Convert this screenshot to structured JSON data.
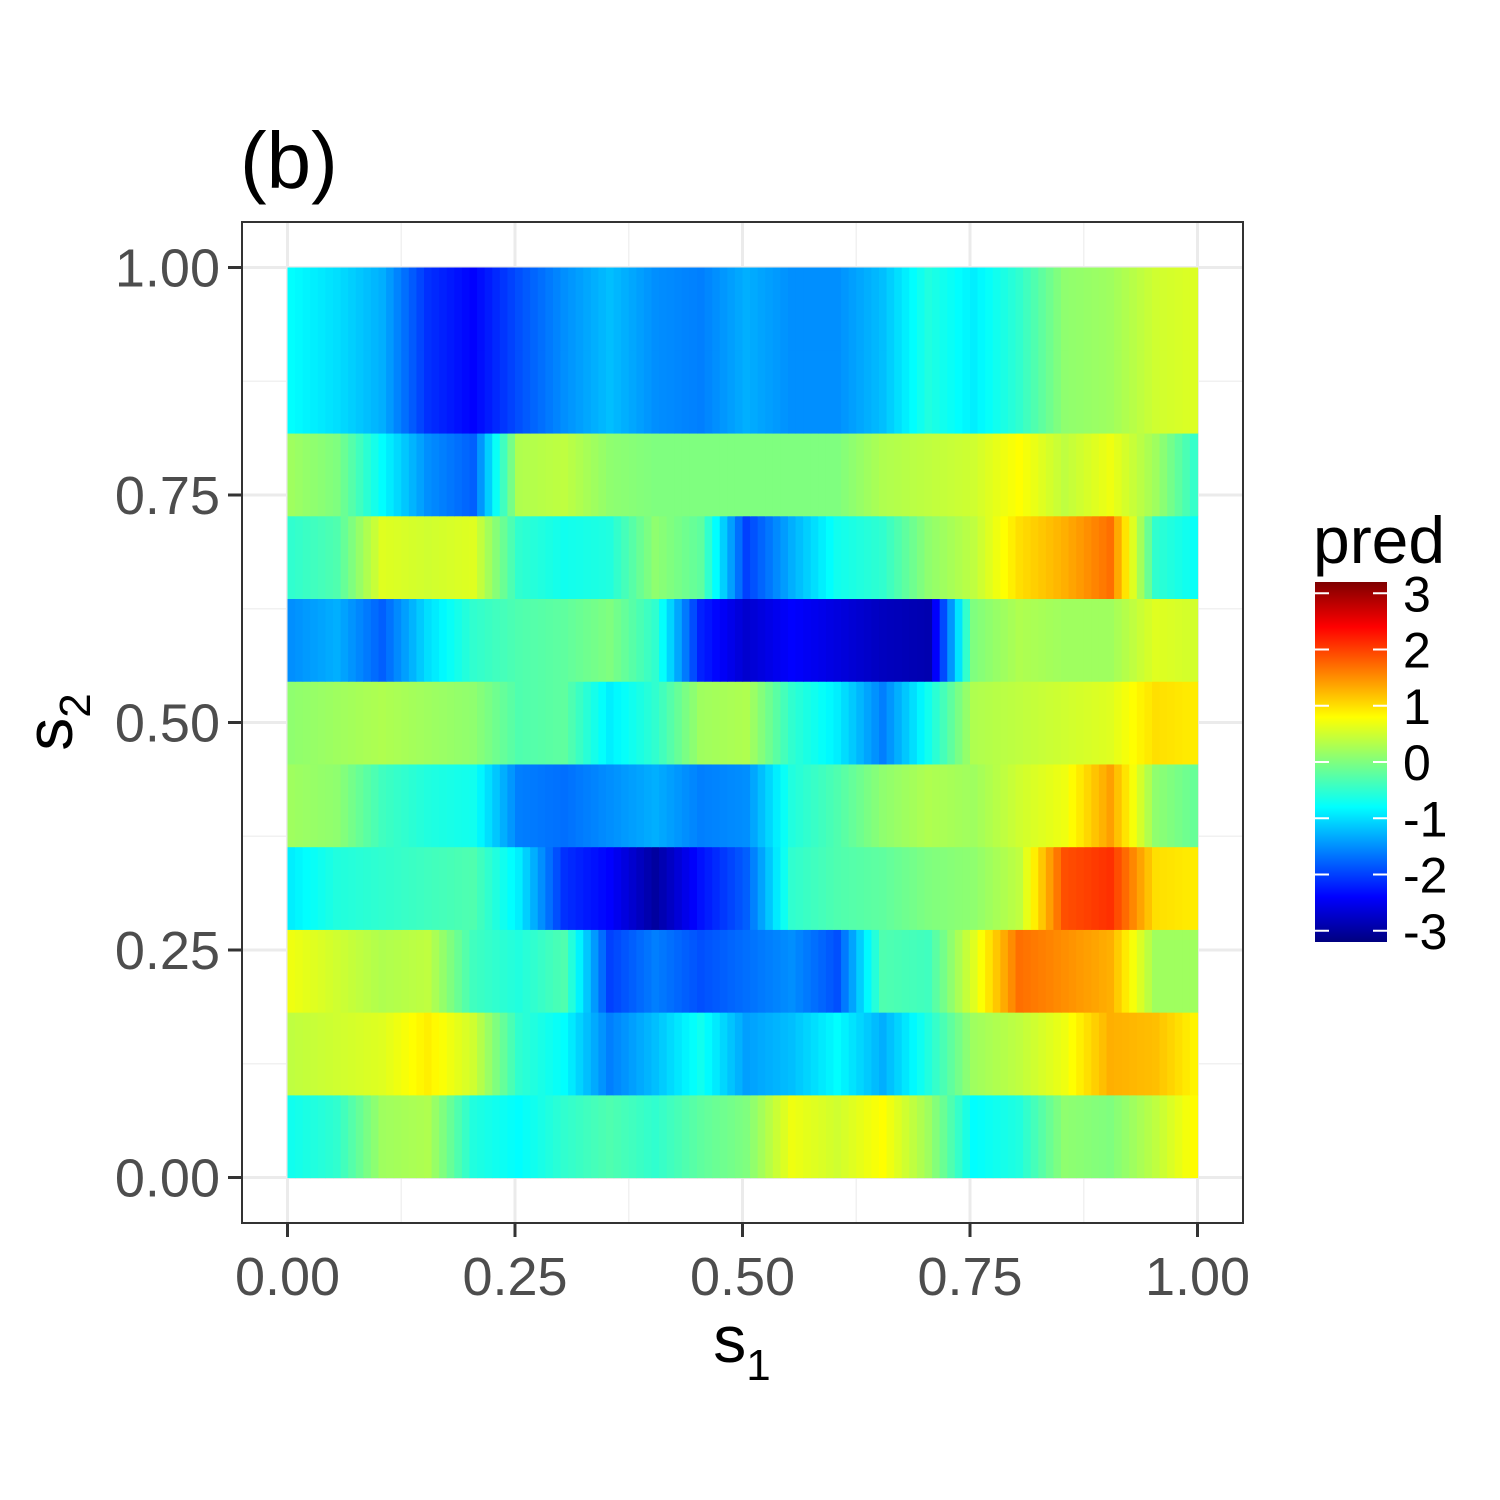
{
  "chart_data": {
    "type": "heatmap",
    "title": "(b)",
    "xlabel": "s",
    "xlabel_sub": "1",
    "ylabel": "s",
    "ylabel_sub": "2",
    "xlim": [
      -0.05,
      1.05
    ],
    "ylim": [
      -0.05,
      1.05
    ],
    "x_ticks": [
      0,
      0.25,
      0.5,
      0.75,
      1
    ],
    "x_tick_labels": [
      "0.00",
      "0.25",
      "0.50",
      "0.75",
      "1.00"
    ],
    "y_ticks": [
      0,
      0.25,
      0.5,
      0.75,
      1
    ],
    "y_tick_labels": [
      "0.00",
      "0.25",
      "0.50",
      "0.75",
      "1.00"
    ],
    "grid": true,
    "legend": {
      "title": "pred",
      "position": "right",
      "min": -3.2,
      "max": 3.2,
      "breaks": [
        3,
        2,
        1,
        0,
        -1,
        -2,
        -3
      ],
      "labels": [
        "3",
        "2",
        "1",
        "0",
        "-1",
        "-2",
        "-3"
      ],
      "colors": [
        "#00007f",
        "#0000ff",
        "#007fff",
        "#00ffff",
        "#7fff7f",
        "#ffff00",
        "#ff7f00",
        "#ff0000",
        "#7f0000"
      ]
    },
    "x": [
      0.0,
      0.05,
      0.1,
      0.15,
      0.2,
      0.25,
      0.3,
      0.35,
      0.4,
      0.45,
      0.5,
      0.55,
      0.6,
      0.65,
      0.7,
      0.75,
      0.8,
      0.85,
      0.9,
      0.95,
      1.0
    ],
    "y": [
      0.0,
      0.1,
      0.2,
      0.3,
      0.4,
      0.5,
      0.6,
      0.7,
      0.8,
      0.9,
      1.0
    ],
    "z": [
      [
        -0.7,
        -0.5,
        0.2,
        0.3,
        -0.6,
        -0.8,
        -0.5,
        -0.3,
        -0.5,
        -0.2,
        0.0,
        0.7,
        0.5,
        0.8,
        0.2,
        -0.8,
        -0.6,
        0.1,
        0.0,
        0.4,
        0.9
      ],
      [
        0.4,
        0.5,
        0.6,
        0.9,
        0.5,
        -0.5,
        -0.8,
        -1.6,
        -1.2,
        -0.7,
        -1.4,
        -1.2,
        -0.8,
        -1.3,
        -0.6,
        0.2,
        0.4,
        0.7,
        1.3,
        1.2,
        0.8
      ],
      [
        0.7,
        0.5,
        0.3,
        0.4,
        -0.4,
        -0.6,
        -0.3,
        -2.0,
        -1.6,
        -1.9,
        -1.7,
        -1.5,
        -1.9,
        -0.3,
        -0.4,
        0.6,
        1.7,
        1.5,
        1.3,
        0.2,
        0.2
      ],
      [
        -0.9,
        -0.6,
        -0.5,
        -0.4,
        -0.3,
        -0.9,
        -2.1,
        -2.4,
        -3.0,
        -2.3,
        -1.8,
        -0.5,
        -0.3,
        -0.2,
        0.0,
        0.1,
        0.4,
        1.9,
        2.1,
        1.0,
        0.9
      ],
      [
        0.2,
        0.1,
        -0.4,
        -0.6,
        -0.7,
        -1.6,
        -1.7,
        -1.5,
        -1.3,
        -1.6,
        -1.5,
        -0.6,
        -0.3,
        0.1,
        0.3,
        0.2,
        0.5,
        0.7,
        1.4,
        0.1,
        -0.2
      ],
      [
        0.1,
        0.2,
        0.3,
        0.2,
        0.1,
        -0.3,
        -0.2,
        -0.9,
        -0.5,
        0.2,
        0.3,
        -0.5,
        -0.9,
        -1.6,
        -0.7,
        0.3,
        0.4,
        0.5,
        0.6,
        1.0,
        0.9
      ],
      [
        -1.5,
        -1.3,
        -1.8,
        -1.0,
        -0.5,
        -0.3,
        -0.2,
        0.0,
        -0.5,
        -2.2,
        -2.7,
        -2.4,
        -2.6,
        -2.8,
        -2.9,
        0.0,
        0.3,
        0.2,
        0.2,
        0.6,
        0.5
      ],
      [
        -0.5,
        -0.3,
        0.6,
        0.5,
        0.6,
        -0.5,
        -0.7,
        -0.6,
        0.1,
        -0.2,
        -2.0,
        -1.3,
        -0.7,
        -0.5,
        0.1,
        0.4,
        1.0,
        1.3,
        1.7,
        -0.5,
        -0.8
      ],
      [
        0.2,
        0.0,
        -0.8,
        -1.5,
        -1.8,
        0.3,
        0.4,
        0.1,
        0.0,
        0.0,
        0.0,
        0.0,
        0.0,
        0.3,
        0.4,
        0.5,
        0.8,
        0.4,
        0.7,
        0.2,
        -0.6
      ],
      [
        -0.8,
        -1.0,
        -1.3,
        -2.1,
        -2.4,
        -1.9,
        -1.5,
        -1.2,
        -1.5,
        -1.6,
        -1.3,
        -1.5,
        -1.5,
        -1.2,
        -0.6,
        -0.9,
        -0.5,
        0.1,
        0.2,
        0.5,
        0.6
      ],
      [
        -0.8,
        -1.0,
        -1.3,
        -2.1,
        -2.4,
        -1.9,
        -1.5,
        -1.2,
        -1.5,
        -1.6,
        -1.3,
        -1.5,
        -1.5,
        -1.2,
        -0.6,
        -0.9,
        -0.5,
        0.1,
        0.2,
        0.5,
        0.6
      ]
    ]
  }
}
